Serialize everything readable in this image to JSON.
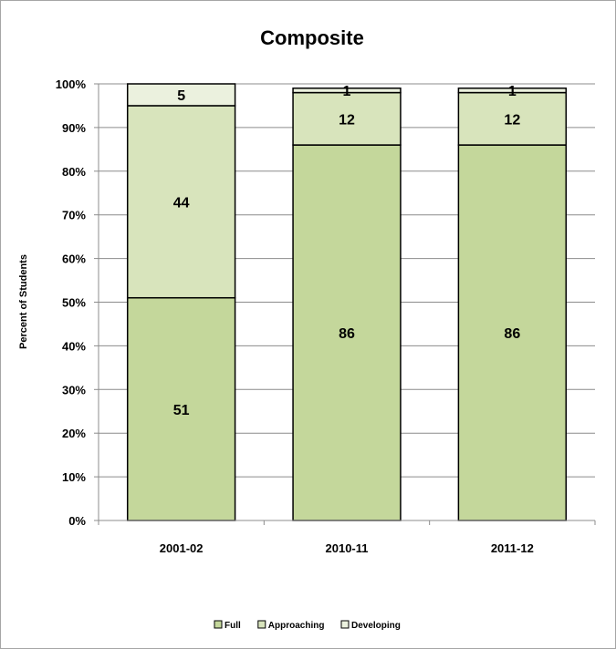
{
  "chart_data": {
    "type": "bar",
    "stacked": true,
    "title": "Composite",
    "xlabel": "",
    "ylabel": "Percent of Students",
    "categories": [
      "2001-02",
      "2010-11",
      "2011-12"
    ],
    "ylim": [
      0,
      100
    ],
    "yticks": [
      "0%",
      "10%",
      "20%",
      "30%",
      "40%",
      "50%",
      "60%",
      "70%",
      "80%",
      "90%",
      "100%"
    ],
    "series": [
      {
        "name": "Full",
        "values": [
          51,
          86,
          86
        ],
        "color": "#c4d79b"
      },
      {
        "name": "Approaching",
        "values": [
          44,
          12,
          12
        ],
        "color": "#d8e4bc"
      },
      {
        "name": "Developing",
        "values": [
          5,
          1,
          1
        ],
        "color": "#ebf1de"
      }
    ],
    "grid": true,
    "legend_position": "bottom"
  }
}
